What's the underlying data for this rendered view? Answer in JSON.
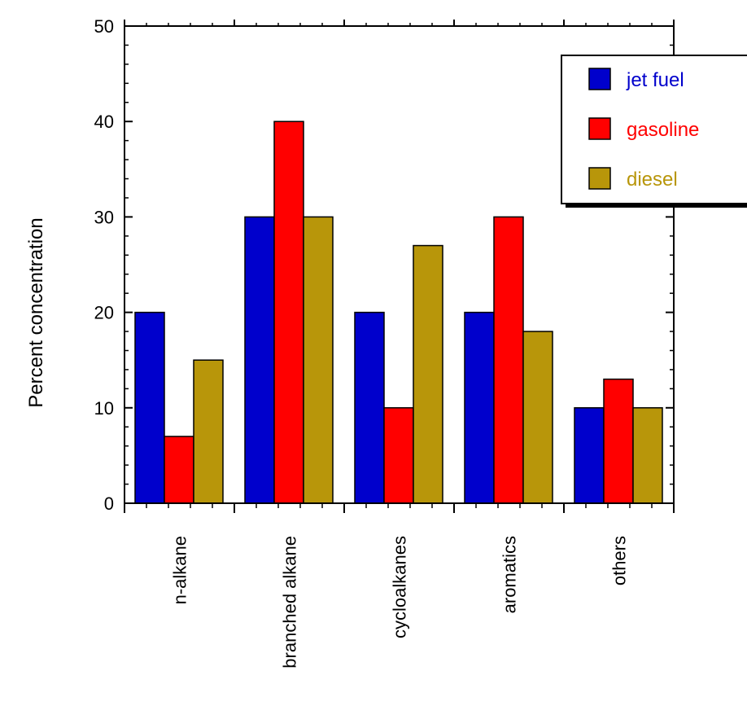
{
  "chart_data": {
    "type": "bar",
    "title": "",
    "xlabel": "",
    "ylabel": "Percent concentration",
    "ylim": [
      0,
      50
    ],
    "yticks": [
      0,
      10,
      20,
      30,
      40,
      50
    ],
    "y_minor_step": 2,
    "grid": false,
    "legend_position": "top-right",
    "categories": [
      "n-alkane",
      "branched alkane",
      "cycloalkanes",
      "aromatics",
      "others"
    ],
    "series": [
      {
        "name": "jet fuel",
        "color": "#0000cc",
        "values": [
          20,
          30,
          20,
          20,
          10
        ]
      },
      {
        "name": "gasoline",
        "color": "#ff0000",
        "values": [
          7,
          40,
          10,
          30,
          13
        ]
      },
      {
        "name": "diesel",
        "color": "#b8960a",
        "values": [
          15,
          30,
          27,
          18,
          10
        ]
      }
    ]
  }
}
